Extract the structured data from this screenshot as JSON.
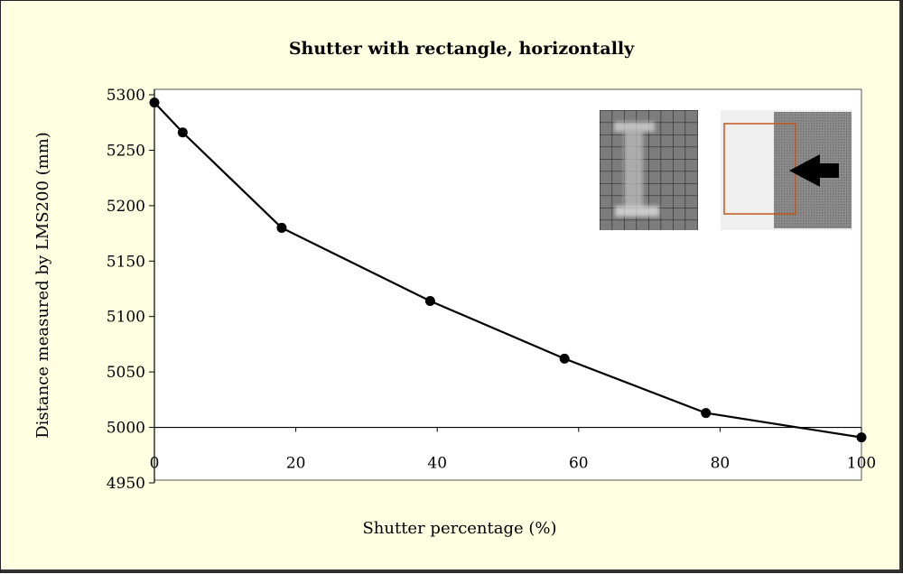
{
  "chart_data": {
    "type": "line",
    "title": "Shutter with rectangle, horizontally",
    "xlabel": "Shutter percentage  (%)",
    "ylabel": "Distance measured by LMS200 (mm)",
    "xlim": [
      0,
      100
    ],
    "ylim": [
      4950,
      5300
    ],
    "x_ticks": [
      "0",
      "20",
      "40",
      "60",
      "80",
      "100"
    ],
    "y_ticks": [
      "5300",
      "5250",
      "5200",
      "5150",
      "5100",
      "5050",
      "5000",
      "4950"
    ],
    "x_axis_crosses_at": 5000,
    "grid": false,
    "legend": "none",
    "series": [
      {
        "x": [
          0,
          4,
          18,
          39,
          58,
          78,
          100
        ],
        "y": [
          5293,
          5266,
          5180,
          5114,
          5062,
          5013,
          4991
        ],
        "color": "#000000"
      }
    ],
    "colors": {
      "background": "#ffffe1",
      "plot_area": "#ffffff",
      "line": "#000000",
      "inset_rectangle": "#c0561b"
    }
  }
}
